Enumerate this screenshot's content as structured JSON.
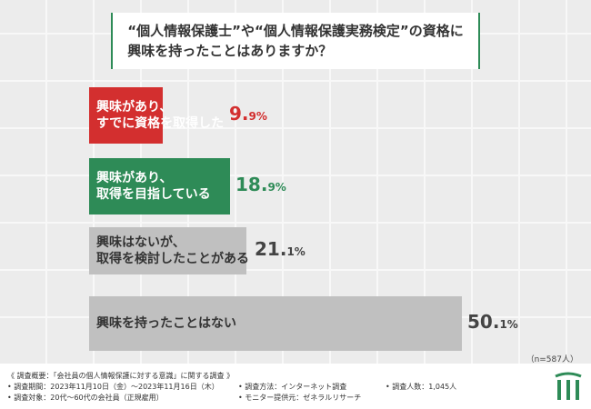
{
  "title": {
    "line1": "“個人情報保護士”や“個人情報保護実務検定”の資格に",
    "line2": "興味を持ったことはありますか？"
  },
  "chart_data": {
    "type": "bar",
    "title": "“個人情報保護士”や“個人情報保護実務検定”の資格に興味を持ったことはありますか？",
    "categories": [
      [
        "興味があり、",
        "すでに資格を取得した"
      ],
      [
        "興味があり、",
        "取得を目指している"
      ],
      [
        "興味はないが、",
        "取得を検討したことがある"
      ],
      [
        "興味を持ったことはない"
      ]
    ],
    "values": [
      9.9,
      18.9,
      21.1,
      50.1
    ],
    "value_labels": [
      [
        "9.",
        "9%"
      ],
      [
        "18.",
        "9%"
      ],
      [
        "21.",
        "1%"
      ],
      [
        "50.",
        "1%"
      ]
    ],
    "colors": [
      "#d32f2f",
      "#2e8b57",
      "#c0c0c0",
      "#c0c0c0"
    ],
    "label_colors": [
      "#ffffff",
      "#ffffff",
      "#333333",
      "#333333"
    ],
    "value_colors": [
      "#d32f2f",
      "#2e8b57",
      "#444444",
      "#444444"
    ],
    "xlim": [
      0,
      50.1
    ],
    "orientation": "horizontal"
  },
  "n_label": "（n=587人）",
  "footer": {
    "summary": "《 調査概要：「会社員の個人情報保護に対する意識」に関する調査 》",
    "period": "• 調査期間：2023年11月10日（金）～2023年11月16日（木）",
    "method": "• 調査方法：インターネット調査",
    "count": "• 調査人数：1,045人",
    "target": "• 調査対象：20代～60代の会社員（正規雇用）",
    "provider": "• モニター提供元：ゼネラルリサーチ"
  }
}
